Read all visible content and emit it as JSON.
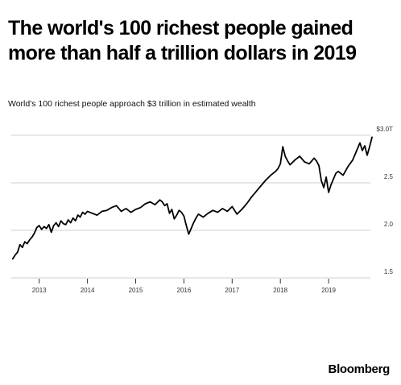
{
  "headline": {
    "line1": "The world's 100 richest people gained",
    "line2": "more than half a trillion dollars in 2019"
  },
  "chart_data": {
    "type": "line",
    "title": "World's 100 richest people approach $3 trillion in estimated wealth",
    "xlabel": "",
    "ylabel": "",
    "xlim": [
      2012.42,
      2019.95
    ],
    "ylim": [
      1.5,
      3.0
    ],
    "grid": true,
    "x_ticks": [
      "2013",
      "2014",
      "2015",
      "2016",
      "2017",
      "2018",
      "2019"
    ],
    "y_ticks": [
      {
        "value": 3.0,
        "label": "$3.0T"
      },
      {
        "value": 2.5,
        "label": "2.5"
      },
      {
        "value": 2.0,
        "label": "2.0"
      },
      {
        "value": 1.5,
        "label": "1.5"
      }
    ],
    "series": [
      {
        "color": "#000000",
        "x": [
          2012.45,
          2012.5,
          2012.55,
          2012.6,
          2012.65,
          2012.7,
          2012.75,
          2012.8,
          2012.85,
          2012.9,
          2012.95,
          2013.0,
          2013.05,
          2013.1,
          2013.15,
          2013.2,
          2013.25,
          2013.3,
          2013.35,
          2013.4,
          2013.45,
          2013.5,
          2013.55,
          2013.6,
          2013.65,
          2013.7,
          2013.75,
          2013.8,
          2013.85,
          2013.9,
          2013.95,
          2014.0,
          2014.1,
          2014.2,
          2014.3,
          2014.4,
          2014.5,
          2014.6,
          2014.7,
          2014.8,
          2014.9,
          2015.0,
          2015.1,
          2015.2,
          2015.3,
          2015.4,
          2015.5,
          2015.55,
          2015.6,
          2015.65,
          2015.7,
          2015.75,
          2015.8,
          2015.85,
          2015.9,
          2015.95,
          2016.0,
          2016.05,
          2016.1,
          2016.15,
          2016.2,
          2016.25,
          2016.3,
          2016.4,
          2016.5,
          2016.6,
          2016.7,
          2016.8,
          2016.9,
          2017.0,
          2017.1,
          2017.2,
          2017.3,
          2017.4,
          2017.5,
          2017.6,
          2017.7,
          2017.8,
          2017.9,
          2017.95,
          2018.0,
          2018.05,
          2018.1,
          2018.15,
          2018.2,
          2018.3,
          2018.4,
          2018.5,
          2018.6,
          2018.7,
          2018.75,
          2018.8,
          2018.85,
          2018.9,
          2018.95,
          2019.0,
          2019.05,
          2019.1,
          2019.15,
          2019.2,
          2019.3,
          2019.4,
          2019.5,
          2019.55,
          2019.6,
          2019.65,
          2019.7,
          2019.75,
          2019.8,
          2019.85,
          2019.9
        ],
        "y": [
          1.7,
          1.74,
          1.77,
          1.85,
          1.82,
          1.88,
          1.86,
          1.9,
          1.93,
          1.97,
          2.03,
          2.05,
          2.01,
          2.04,
          2.02,
          2.06,
          1.98,
          2.05,
          2.08,
          2.04,
          2.1,
          2.07,
          2.06,
          2.11,
          2.08,
          2.13,
          2.1,
          2.16,
          2.14,
          2.19,
          2.17,
          2.2,
          2.18,
          2.16,
          2.2,
          2.21,
          2.24,
          2.26,
          2.2,
          2.23,
          2.19,
          2.22,
          2.24,
          2.28,
          2.3,
          2.27,
          2.32,
          2.3,
          2.26,
          2.28,
          2.18,
          2.22,
          2.12,
          2.16,
          2.21,
          2.19,
          2.15,
          2.05,
          1.96,
          2.02,
          2.08,
          2.13,
          2.17,
          2.14,
          2.18,
          2.21,
          2.19,
          2.23,
          2.2,
          2.25,
          2.17,
          2.22,
          2.28,
          2.35,
          2.41,
          2.47,
          2.53,
          2.58,
          2.62,
          2.65,
          2.7,
          2.88,
          2.78,
          2.73,
          2.69,
          2.74,
          2.78,
          2.72,
          2.7,
          2.76,
          2.73,
          2.68,
          2.52,
          2.45,
          2.56,
          2.4,
          2.48,
          2.54,
          2.6,
          2.62,
          2.58,
          2.67,
          2.74,
          2.8,
          2.86,
          2.92,
          2.84,
          2.89,
          2.79,
          2.88,
          2.98
        ]
      }
    ]
  },
  "branding": {
    "source": "Bloomberg"
  }
}
